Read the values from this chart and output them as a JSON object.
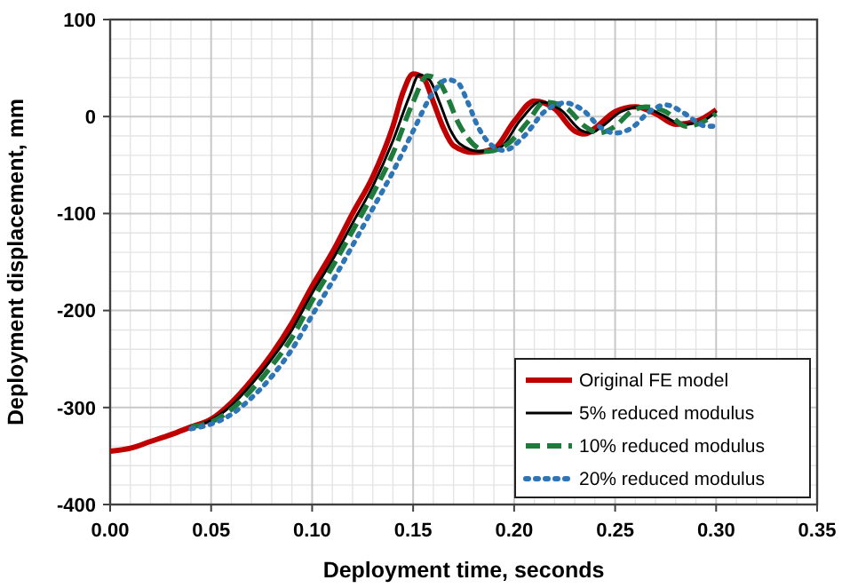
{
  "chart_data": {
    "type": "line",
    "xlabel": "Deployment time, seconds",
    "ylabel": "Deployment displacement, mm",
    "xlim": [
      0,
      0.35
    ],
    "ylim": [
      -400,
      100
    ],
    "xticks": [
      {
        "value": 0,
        "label": "0.00"
      },
      {
        "value": 0.05,
        "label": "0.05"
      },
      {
        "value": 0.1,
        "label": "0.10"
      },
      {
        "value": 0.15,
        "label": "0.15"
      },
      {
        "value": 0.2,
        "label": "0.20"
      },
      {
        "value": 0.25,
        "label": "0.25"
      },
      {
        "value": 0.3,
        "label": "0.30"
      },
      {
        "value": 0.35,
        "label": "0.35"
      }
    ],
    "yticks": [
      -400,
      -300,
      -200,
      -100,
      0,
      100
    ],
    "grid": true,
    "legend": "bottom right",
    "series": [
      {
        "name": "Original FE model",
        "color": "#c00000",
        "line_style": "solid",
        "x": [
          0,
          0.01,
          0.02,
          0.03,
          0.04,
          0.05,
          0.06,
          0.07,
          0.08,
          0.09,
          0.1,
          0.11,
          0.12,
          0.13,
          0.14,
          0.145,
          0.15,
          0.155,
          0.16,
          0.165,
          0.17,
          0.18,
          0.19,
          0.2,
          0.21,
          0.22,
          0.23,
          0.235,
          0.24,
          0.25,
          0.26,
          0.27,
          0.28,
          0.29,
          0.3
        ],
        "values": [
          -345,
          -342,
          -335,
          -328,
          -320,
          -312,
          -295,
          -272,
          -245,
          -213,
          -175,
          -140,
          -100,
          -62,
          -10,
          25,
          44,
          40,
          15,
          -12,
          -30,
          -37,
          -33,
          -5,
          16,
          8,
          -15,
          -18,
          -12,
          5,
          10,
          3,
          -8,
          -5,
          7
        ]
      },
      {
        "name": "5% reduced modulus",
        "color": "#000000",
        "line_style": "solid",
        "x": [
          0.04,
          0.05,
          0.06,
          0.07,
          0.08,
          0.09,
          0.1,
          0.11,
          0.12,
          0.13,
          0.14,
          0.148,
          0.153,
          0.158,
          0.163,
          0.168,
          0.173,
          0.183,
          0.193,
          0.203,
          0.213,
          0.223,
          0.233,
          0.238,
          0.243,
          0.253,
          0.263,
          0.273,
          0.283,
          0.293,
          0.3
        ],
        "values": [
          -320,
          -313,
          -298,
          -276,
          -250,
          -220,
          -182,
          -148,
          -110,
          -72,
          -25,
          20,
          43,
          38,
          15,
          -12,
          -28,
          -36,
          -32,
          -4,
          15,
          7,
          -14,
          -17,
          -11,
          5,
          10,
          2,
          -8,
          -5,
          5
        ]
      },
      {
        "name": "10% reduced modulus",
        "color": "#1e7b3c",
        "line_style": "dashed",
        "x": [
          0.04,
          0.05,
          0.06,
          0.07,
          0.08,
          0.09,
          0.1,
          0.11,
          0.12,
          0.13,
          0.14,
          0.15,
          0.157,
          0.162,
          0.167,
          0.172,
          0.177,
          0.187,
          0.197,
          0.207,
          0.215,
          0.225,
          0.235,
          0.242,
          0.25,
          0.258,
          0.265,
          0.275,
          0.285,
          0.293,
          0.3
        ],
        "values": [
          -320,
          -315,
          -302,
          -282,
          -257,
          -228,
          -190,
          -155,
          -118,
          -80,
          -38,
          15,
          42,
          38,
          20,
          -5,
          -22,
          -36,
          -28,
          -5,
          15,
          10,
          -10,
          -17,
          -10,
          5,
          10,
          5,
          -10,
          -6,
          3
        ]
      },
      {
        "name": "20% reduced modulus",
        "color": "#2e75b6",
        "line_style": "dotted",
        "x": [
          0.04,
          0.05,
          0.06,
          0.07,
          0.08,
          0.09,
          0.1,
          0.11,
          0.12,
          0.13,
          0.14,
          0.15,
          0.16,
          0.167,
          0.172,
          0.177,
          0.182,
          0.188,
          0.195,
          0.205,
          0.215,
          0.225,
          0.235,
          0.242,
          0.25,
          0.258,
          0.267,
          0.275,
          0.283,
          0.29,
          0.295,
          0.3
        ],
        "values": [
          -322,
          -317,
          -307,
          -290,
          -268,
          -240,
          -205,
          -170,
          -133,
          -95,
          -57,
          -15,
          25,
          38,
          35,
          15,
          -10,
          -28,
          -35,
          -20,
          5,
          14,
          5,
          -10,
          -17,
          -12,
          5,
          12,
          5,
          -5,
          -10,
          -10
        ]
      }
    ]
  }
}
